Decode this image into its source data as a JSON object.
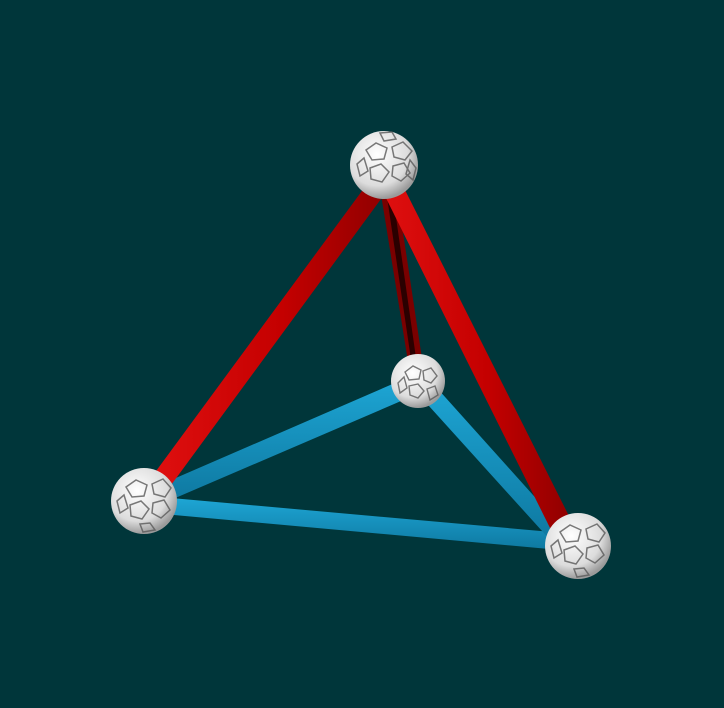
{
  "scene": {
    "background": "#00363a",
    "rod_colors": {
      "red": "#cc0000",
      "red_dark": "#7a0000",
      "blue": "#1596c3",
      "blue_dark": "#0b6f94"
    },
    "node_color": "#e6e6e6",
    "node_shadow": "#8a8a8a",
    "nodes": [
      {
        "id": "top",
        "icon": "hub-node-icon"
      },
      {
        "id": "left",
        "icon": "hub-node-icon"
      },
      {
        "id": "right",
        "icon": "hub-node-icon"
      },
      {
        "id": "center",
        "icon": "hub-node-icon"
      }
    ],
    "edges": [
      {
        "id": "top-left",
        "color": "red"
      },
      {
        "id": "top-right",
        "color": "red"
      },
      {
        "id": "top-center",
        "color": "red"
      },
      {
        "id": "center-left",
        "color": "blue"
      },
      {
        "id": "center-right",
        "color": "blue"
      },
      {
        "id": "left-right",
        "color": "blue"
      }
    ]
  }
}
